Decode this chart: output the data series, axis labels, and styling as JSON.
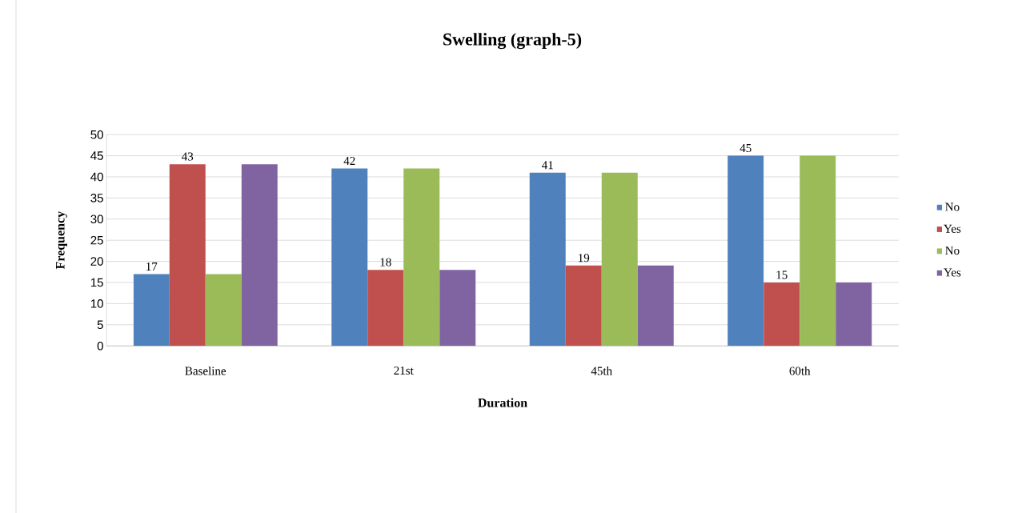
{
  "chart_data": {
    "type": "bar",
    "title": "Swelling (graph-5)",
    "xlabel": "Duration",
    "ylabel": "Frequency",
    "categories": [
      "Baseline",
      "21st",
      "45th",
      "60th"
    ],
    "series": [
      {
        "name": "No",
        "color": "#4f81bd",
        "values": [
          17,
          42,
          41,
          45
        ],
        "value_labels": [
          "17",
          "42",
          "41",
          "45"
        ]
      },
      {
        "name": "Yes",
        "color": "#c0504d",
        "values": [
          43,
          18,
          19,
          15
        ],
        "value_labels": [
          "43",
          "18",
          "19",
          "15"
        ]
      },
      {
        "name": "No",
        "color": "#9bbb59",
        "values": [
          17,
          42,
          41,
          45
        ]
      },
      {
        "name": "Yes",
        "color": "#8064a2",
        "values": [
          43,
          18,
          19,
          15
        ]
      }
    ],
    "ylim": [
      0,
      50
    ],
    "yticks": [
      0,
      5,
      10,
      15,
      20,
      25,
      30,
      35,
      40,
      45,
      50
    ],
    "grid": "y",
    "legend": "right"
  }
}
